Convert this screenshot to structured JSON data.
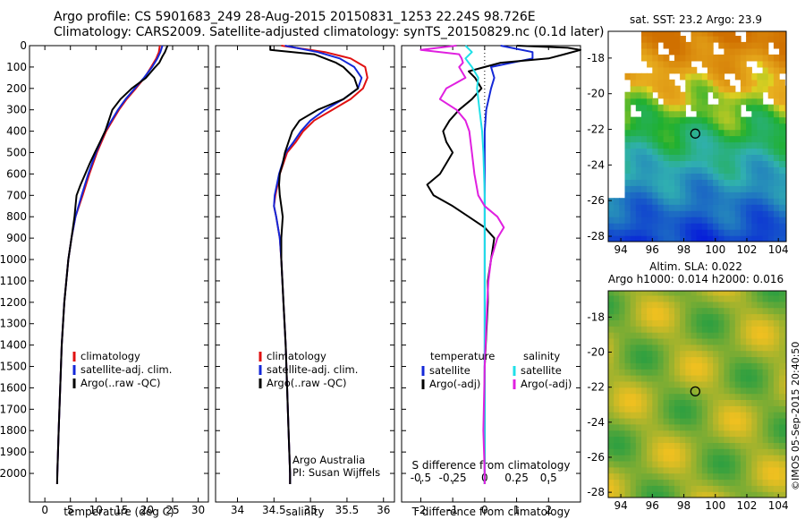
{
  "header": {
    "line1": "Argo profile: CS 5901683_249 28-Aug-2015 20150831_1253 22.24S 98.726E",
    "line2": "Climatology: CARS2009. Satellite-adjusted climatology: synTS_20150829.nc (0.1d later)"
  },
  "colors": {
    "climatology": "#e01010",
    "satellite": "#1428d8",
    "argo": "#000000",
    "satellite_s": "#20e0e8",
    "argo_s": "#e020e0",
    "sst_low": "#1040d0",
    "sst_mid": "#20b030",
    "sst_high": "#d07000",
    "sla_low": "#30a040",
    "sla_high": "#f0c020"
  },
  "chart_data": [
    {
      "type": "line",
      "name": "temperature-profile",
      "xlabel": "temperature (deg C)",
      "ylabel": "",
      "xlim": [
        -3,
        32
      ],
      "ylim": [
        2050,
        0
      ],
      "xticks": [
        0,
        5,
        10,
        15,
        20,
        25,
        30
      ],
      "yticks": [
        0,
        100,
        200,
        300,
        400,
        500,
        600,
        700,
        800,
        900,
        1000,
        1100,
        1200,
        1300,
        1400,
        1500,
        1600,
        1700,
        1800,
        1900,
        2000
      ],
      "legend_position": "lower-middle",
      "series": [
        {
          "name": "climatology",
          "color_key": "climatology",
          "depth": [
            0,
            30,
            60,
            100,
            150,
            200,
            250,
            300,
            400,
            500,
            600,
            700,
            800,
            900,
            1000,
            1200,
            1400,
            1600,
            1800,
            2000,
            2050
          ],
          "values": [
            22.5,
            22.3,
            21.8,
            20.8,
            19.5,
            17.8,
            16.0,
            14.5,
            12.0,
            10.2,
            8.7,
            7.4,
            6.0,
            5.2,
            4.6,
            3.8,
            3.3,
            3.0,
            2.7,
            2.45,
            2.4
          ]
        },
        {
          "name": "satellite-adj. clim.",
          "color_key": "satellite",
          "depth": [
            0,
            30,
            60,
            100,
            150,
            200,
            250,
            300,
            400,
            500,
            600,
            700,
            800,
            900,
            1000,
            1200,
            1400,
            1600,
            1800,
            2000,
            2050
          ],
          "values": [
            23.0,
            22.6,
            22.0,
            21.0,
            19.4,
            17.6,
            15.8,
            14.3,
            11.8,
            10.0,
            8.5,
            7.2,
            6.0,
            5.2,
            4.6,
            3.8,
            3.3,
            3.0,
            2.7,
            2.45,
            2.4
          ]
        },
        {
          "name": "Argo(..raw -QC)",
          "color_key": "argo",
          "depth": [
            0,
            30,
            50,
            80,
            100,
            150,
            200,
            250,
            300,
            350,
            400,
            450,
            500,
            550,
            600,
            650,
            700,
            750,
            800,
            900,
            1000,
            1200,
            1400,
            1600,
            1800,
            2000,
            2050
          ],
          "values": [
            24.0,
            23.5,
            23.0,
            22.4,
            21.6,
            19.8,
            17.0,
            14.8,
            13.2,
            12.5,
            11.8,
            10.8,
            9.8,
            8.8,
            7.9,
            7.0,
            6.2,
            6.0,
            5.8,
            5.2,
            4.6,
            3.8,
            3.3,
            3.0,
            2.7,
            2.45,
            2.4
          ]
        }
      ],
      "legend_entries": [
        "climatology",
        "satellite-adj. clim.",
        "Argo(..raw -QC)"
      ]
    },
    {
      "type": "line",
      "name": "salinity-profile",
      "xlabel": "salinity",
      "xlim": [
        33.7,
        36.15
      ],
      "ylim": [
        2050,
        0
      ],
      "xticks": [
        34,
        34.5,
        35,
        35.5,
        36
      ],
      "xticklabels": [
        "34",
        "34.5",
        "35",
        "35.5",
        "36"
      ],
      "legend_position": "lower-middle",
      "annotation": [
        "Argo Australia",
        "PI: Susan Wijffels"
      ],
      "series": [
        {
          "name": "climatology",
          "color_key": "climatology",
          "depth": [
            0,
            30,
            60,
            100,
            150,
            200,
            250,
            300,
            350,
            400,
            450,
            500,
            600,
            700,
            750,
            800,
            900,
            1000,
            1200,
            1400,
            1600,
            1800,
            2000,
            2050
          ],
          "values": [
            34.6,
            35.2,
            35.55,
            35.75,
            35.78,
            35.72,
            35.55,
            35.3,
            35.05,
            34.9,
            34.8,
            34.68,
            34.58,
            34.52,
            34.5,
            34.53,
            34.58,
            34.6,
            34.63,
            34.66,
            34.68,
            34.7,
            34.72,
            34.72
          ]
        },
        {
          "name": "satellite-adj. clim.",
          "color_key": "satellite",
          "depth": [
            0,
            30,
            60,
            100,
            150,
            200,
            250,
            300,
            350,
            400,
            450,
            500,
            600,
            700,
            750,
            800,
            900,
            1000,
            1200,
            1400,
            1600,
            1800,
            2000,
            2050
          ],
          "values": [
            34.65,
            35.1,
            35.4,
            35.6,
            35.7,
            35.65,
            35.45,
            35.2,
            35.0,
            34.87,
            34.77,
            34.66,
            34.57,
            34.51,
            34.5,
            34.53,
            34.58,
            34.6,
            34.63,
            34.66,
            34.68,
            34.7,
            34.72,
            34.72
          ]
        },
        {
          "name": "Argo(..raw -QC)",
          "color_key": "argo",
          "depth": [
            0,
            20,
            40,
            60,
            80,
            100,
            150,
            200,
            250,
            300,
            350,
            400,
            450,
            500,
            550,
            600,
            650,
            700,
            750,
            800,
            900,
            1000,
            1200,
            1400,
            1600,
            1800,
            2000,
            2050
          ],
          "values": [
            34.45,
            34.45,
            35.05,
            35.2,
            35.35,
            35.45,
            35.6,
            35.65,
            35.45,
            35.1,
            34.85,
            34.75,
            34.7,
            34.65,
            34.62,
            34.58,
            34.57,
            34.58,
            34.6,
            34.62,
            34.6,
            34.6,
            34.63,
            34.66,
            34.68,
            34.7,
            34.72,
            34.72
          ]
        }
      ],
      "legend_entries": [
        "climatology",
        "satellite-adj. clim.",
        "Argo(..raw -QC)"
      ]
    },
    {
      "type": "line",
      "name": "difference-profile",
      "xlabel": "T difference from climatology",
      "x2label": "S difference from climatology",
      "xlim": [
        -2.6,
        3.0
      ],
      "x2lim": [
        -0.65,
        0.75
      ],
      "ylim": [
        2050,
        0
      ],
      "xticks": [
        -2,
        -1,
        0,
        1,
        2
      ],
      "x2ticks": [
        -0.5,
        -0.25,
        0,
        0.25,
        0.5
      ],
      "x2ticklabels": [
        "-0.5",
        "-0.25",
        "0",
        "0.25",
        "0.5"
      ],
      "legend_position": "lower-middle",
      "legend_titles": [
        "temperature",
        "salinity"
      ],
      "series": [
        {
          "name": "satellite",
          "group": "temperature",
          "color_key": "satellite",
          "depth": [
            0,
            30,
            60,
            100,
            150,
            200,
            300,
            400,
            500,
            700,
            900,
            1000,
            1200,
            1500,
            2000,
            2050
          ],
          "values": [
            0.5,
            1.5,
            1.5,
            0.2,
            0.3,
            0.2,
            0.05,
            0.0,
            0.0,
            0.0,
            0.0,
            0.0,
            0.0,
            0.0,
            0.0,
            0.0
          ]
        },
        {
          "name": "Argo(-adj)",
          "group": "temperature",
          "color_key": "argo",
          "depth": [
            0,
            10,
            20,
            40,
            60,
            80,
            100,
            120,
            150,
            200,
            250,
            300,
            350,
            400,
            450,
            500,
            550,
            600,
            650,
            700,
            750,
            800,
            850,
            900,
            1000,
            1100,
            1200,
            1500,
            1800,
            2000,
            2050
          ],
          "values": [
            1.0,
            2.6,
            3.0,
            2.5,
            2.0,
            0.5,
            0.0,
            -0.5,
            -0.3,
            -0.1,
            -0.4,
            -0.8,
            -1.1,
            -1.3,
            -1.2,
            -1.0,
            -1.2,
            -1.4,
            -1.8,
            -1.6,
            -1.0,
            -0.5,
            0.0,
            0.3,
            0.2,
            0.1,
            0.1,
            0.0,
            0.0,
            0.0,
            0.0
          ]
        },
        {
          "name": "satellite",
          "group": "salinity",
          "color_key": "satellite_s",
          "depth": [
            0,
            30,
            60,
            100,
            150,
            200,
            300,
            400,
            500,
            700,
            800,
            900,
            1000,
            1500,
            2000,
            2050
          ],
          "values": [
            -0.15,
            -0.1,
            -0.15,
            -0.1,
            -0.05,
            -0.06,
            -0.04,
            -0.02,
            -0.01,
            0.0,
            0.0,
            0.0,
            0.0,
            0.0,
            0.0,
            0.0
          ]
        },
        {
          "name": "Argo(-adj)",
          "group": "salinity",
          "color_key": "argo_s",
          "depth": [
            0,
            20,
            40,
            60,
            80,
            100,
            150,
            200,
            250,
            300,
            350,
            400,
            500,
            600,
            700,
            750,
            800,
            850,
            900,
            1000,
            1100,
            1200,
            1500,
            1800,
            2000,
            2050
          ],
          "values": [
            -0.22,
            -0.5,
            -0.2,
            -0.18,
            -0.17,
            -0.2,
            -0.15,
            -0.3,
            -0.35,
            -0.22,
            -0.15,
            -0.12,
            -0.1,
            -0.08,
            -0.05,
            0.0,
            0.1,
            0.15,
            0.1,
            0.05,
            0.03,
            0.02,
            0.0,
            -0.01,
            0.0,
            0.0
          ]
        }
      ],
      "legend_entries": [
        "satellite",
        "Argo(-adj)",
        "satellite",
        "Argo(-adj)"
      ]
    },
    {
      "type": "heatmap",
      "name": "sst-map",
      "title": "sat. SST: 23.2  Argo: 23.9",
      "xlim": [
        93.2,
        104.5
      ],
      "ylim": [
        -28.3,
        -16.5
      ],
      "xticks": [
        94,
        96,
        98,
        100,
        102,
        104
      ],
      "yticks": [
        -18,
        -20,
        -22,
        -24,
        -26,
        -28
      ],
      "marker": {
        "lon": 98.726,
        "lat": -22.24
      },
      "color_scale": "SST, warm north / cool south"
    },
    {
      "type": "heatmap",
      "name": "sla-map",
      "title": "Altim. SLA: 0.022",
      "subtitle": "Argo h1000: 0.014 h2000: 0.016",
      "xlim": [
        93.2,
        104.5
      ],
      "ylim": [
        -28.3,
        -16.5
      ],
      "xticks": [
        94,
        96,
        98,
        100,
        102,
        104
      ],
      "yticks": [
        -18,
        -20,
        -22,
        -24,
        -26,
        -28
      ],
      "marker": {
        "lon": 98.726,
        "lat": -22.24
      },
      "color_scale": "sea level anomaly"
    }
  ],
  "credit": "©IMOS 05-Sep-2015 20:40:50"
}
